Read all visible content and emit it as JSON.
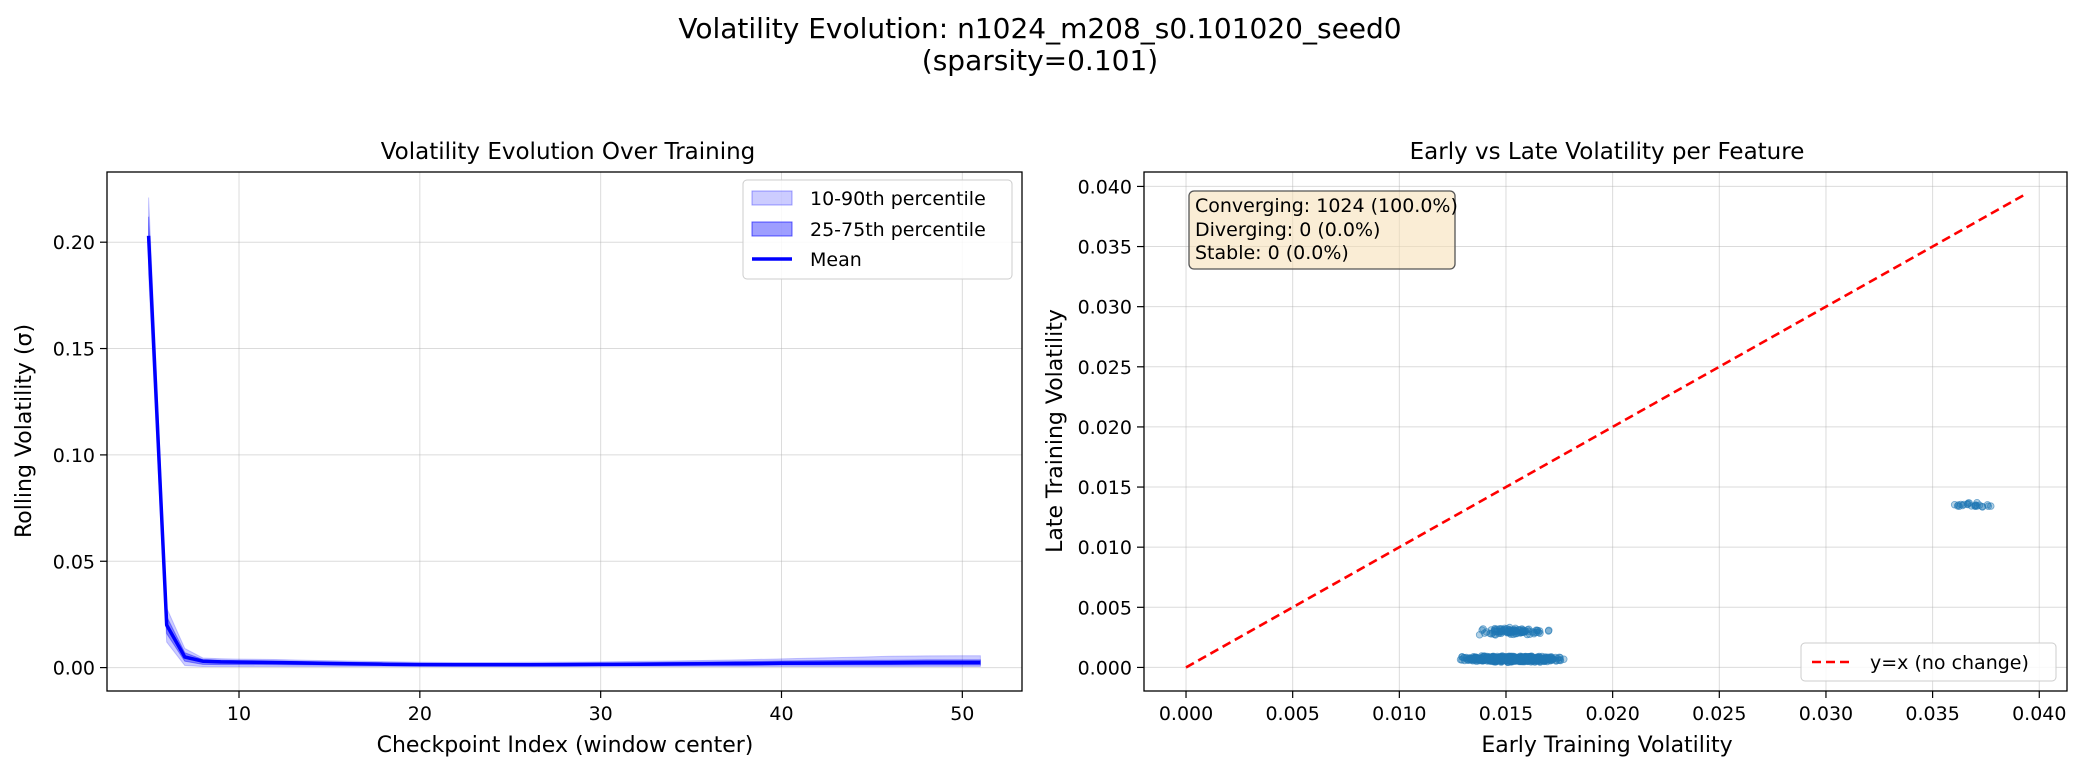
{
  "figure": {
    "title_line1": "Volatility Evolution: n1024_m208_s0.101020_seed0",
    "title_line2": "(sparsity=0.101)"
  },
  "chart_data": [
    {
      "type": "line",
      "title": "Volatility Evolution Over Training",
      "xlabel": "Checkpoint Index (window center)",
      "ylabel": "Rolling Volatility (σ)",
      "xlim": [
        2.7,
        53.3
      ],
      "ylim": [
        -0.011,
        0.233
      ],
      "xticks": [
        10,
        20,
        30,
        40,
        50
      ],
      "yticks": [
        0.0,
        0.05,
        0.1,
        0.15,
        0.2
      ],
      "ytick_labels": [
        "0.00",
        "0.05",
        "0.10",
        "0.15",
        "0.20"
      ],
      "grid": true,
      "legend_position": "upper right",
      "x": [
        5,
        6,
        7,
        8,
        9,
        10,
        12,
        14,
        16,
        18,
        20,
        22,
        24,
        26,
        28,
        30,
        32,
        34,
        36,
        38,
        40,
        42,
        44,
        46,
        48,
        50,
        51
      ],
      "series": [
        {
          "name": "Mean",
          "color": "#0000ff",
          "values": [
            0.203,
            0.02,
            0.005,
            0.003,
            0.0027,
            0.0026,
            0.0024,
            0.0021,
            0.0018,
            0.0016,
            0.0014,
            0.0013,
            0.0013,
            0.0013,
            0.0014,
            0.0015,
            0.0016,
            0.0017,
            0.0018,
            0.0019,
            0.002,
            0.0021,
            0.0022,
            0.0023,
            0.0024,
            0.0024,
            0.0024
          ]
        },
        {
          "name": "10-90th percentile",
          "color": "#0000ff",
          "alpha": 0.2,
          "low": [
            0.185,
            0.012,
            0.001,
            0.0005,
            0.0005,
            0.0005,
            0.0005,
            0.0005,
            0.0005,
            0.0005,
            0.0005,
            0.0005,
            0.0005,
            0.0005,
            0.0005,
            0.0005,
            0.0005,
            0.0005,
            0.0005,
            0.0005,
            0.0005,
            0.0005,
            0.0005,
            0.0005,
            0.0005,
            0.0005,
            0.0005
          ],
          "high": [
            0.221,
            0.028,
            0.009,
            0.0045,
            0.0042,
            0.004,
            0.0038,
            0.0034,
            0.0031,
            0.0028,
            0.0025,
            0.0024,
            0.0024,
            0.0025,
            0.0026,
            0.0027,
            0.0029,
            0.0031,
            0.0034,
            0.0037,
            0.0041,
            0.0045,
            0.0049,
            0.0053,
            0.0055,
            0.0056,
            0.0056
          ]
        },
        {
          "name": "25-75th percentile",
          "color": "#0000ff",
          "alpha": 0.38,
          "low": [
            0.193,
            0.016,
            0.003,
            0.0015,
            0.0014,
            0.0014,
            0.0013,
            0.0012,
            0.0011,
            0.001,
            0.0009,
            0.0009,
            0.0009,
            0.0009,
            0.0009,
            0.001,
            0.001,
            0.0011,
            0.0011,
            0.0011,
            0.0012,
            0.0012,
            0.0012,
            0.0012,
            0.0012,
            0.0012,
            0.0012
          ],
          "high": [
            0.212,
            0.024,
            0.007,
            0.0038,
            0.0035,
            0.0033,
            0.0031,
            0.0028,
            0.0025,
            0.0022,
            0.0019,
            0.0018,
            0.0018,
            0.0019,
            0.002,
            0.0021,
            0.0023,
            0.0025,
            0.0027,
            0.0029,
            0.0031,
            0.0033,
            0.0034,
            0.0035,
            0.0036,
            0.0036,
            0.0036
          ]
        }
      ],
      "legend": [
        "10-90th percentile",
        "25-75th percentile",
        "Mean"
      ]
    },
    {
      "type": "scatter",
      "title": "Early vs Late Volatility per Feature",
      "xlabel": "Early Training Volatility",
      "ylabel": "Late Training Volatility",
      "xlim": [
        -0.00197,
        0.0413
      ],
      "ylim": [
        -0.00196,
        0.0412
      ],
      "xticks": [
        0.0,
        0.005,
        0.01,
        0.015,
        0.02,
        0.025,
        0.03,
        0.035,
        0.04
      ],
      "xtick_labels": [
        "0.000",
        "0.005",
        "0.010",
        "0.015",
        "0.020",
        "0.025",
        "0.030",
        "0.035",
        "0.040"
      ],
      "yticks": [
        0.0,
        0.005,
        0.01,
        0.015,
        0.02,
        0.025,
        0.03,
        0.035,
        0.04
      ],
      "ytick_labels": [
        "0.000",
        "0.005",
        "0.010",
        "0.015",
        "0.020",
        "0.025",
        "0.030",
        "0.035",
        "0.040"
      ],
      "grid": true,
      "point_color": "#1f77b4",
      "clusters": [
        {
          "x_range": [
            0.0125,
            0.018
          ],
          "y_center": 0.0007,
          "y_spread": 0.0003,
          "count": 900
        },
        {
          "x_range": [
            0.0133,
            0.0174
          ],
          "y_center": 0.003,
          "y_spread": 0.0004,
          "count": 100
        },
        {
          "x_range": [
            0.0345,
            0.0393
          ],
          "y_center": 0.0135,
          "y_spread": 0.00025,
          "count": 24
        }
      ],
      "reference_line": {
        "label": "y=x (no change)",
        "color": "#ff0000",
        "x": [
          0.0,
          0.0393
        ],
        "y": [
          0.0,
          0.0393
        ]
      },
      "legend": [
        "y=x (no change)"
      ],
      "legend_position": "lower right",
      "annotation": [
        "Converging: 1024 (100.0%)",
        "Diverging: 0 (0.0%)",
        "Stable: 0 (0.0%)"
      ]
    }
  ]
}
